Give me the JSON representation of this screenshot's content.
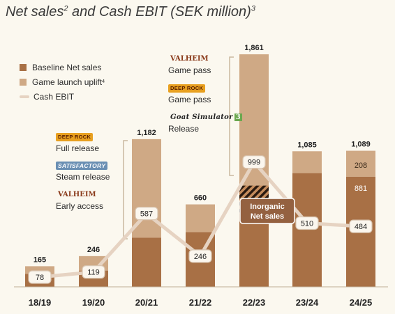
{
  "title": {
    "main": "Net sales",
    "sup1": "2",
    "mid": " and Cash EBIT (SEK million)",
    "sup2": "3"
  },
  "legend": {
    "baseline": "Baseline Net sales",
    "uplift": "Game launch uplift",
    "uplift_sup": "4",
    "ebit": "Cash EBIT"
  },
  "annotations": {
    "group_2021": [
      {
        "logo": "DEEP ROCK",
        "label": "Full release"
      },
      {
        "logo": "SATISFACTORY",
        "label": "Steam release"
      },
      {
        "logo": "VALHEIM",
        "label": "Early access"
      }
    ],
    "group_2223": [
      {
        "logo": "VALHEIM",
        "label": "Game pass"
      },
      {
        "logo": "DEEP ROCK",
        "label": "Game pass"
      },
      {
        "logo": "Goat Simulator",
        "logo_num": "3",
        "label": "Release"
      }
    ],
    "inorganic_label_line1": "Inorganic",
    "inorganic_label_line2": "Net sales"
  },
  "colors": {
    "baseline": "#a87045",
    "uplift": "#cfa985",
    "ebit_line": "#e6d3c2",
    "background": "#fbf8ef",
    "inorganic_box": "#946140"
  },
  "chart_data": {
    "type": "bar",
    "categories": [
      "18/19",
      "19/20",
      "20/21",
      "21/22",
      "22/23",
      "23/24",
      "24/25"
    ],
    "totals": [
      165,
      246,
      1182,
      660,
      1861,
      1085,
      1089
    ],
    "series": [
      {
        "name": "Baseline Net sales",
        "values": [
          null,
          null,
          null,
          null,
          null,
          null,
          881
        ],
        "shown_label": [
          "",
          "",
          "",
          "",
          "",
          "",
          "881"
        ]
      },
      {
        "name": "Game launch uplift",
        "values": [
          null,
          null,
          null,
          null,
          null,
          null,
          208
        ],
        "shown_label": [
          "",
          "",
          "",
          "",
          "",
          "",
          "208"
        ]
      },
      {
        "name": "Cash EBIT",
        "type": "line",
        "values": [
          78,
          119,
          587,
          246,
          999,
          510,
          484
        ]
      }
    ],
    "approx_baseline": [
      103,
      130,
      393,
      438,
      590,
      910,
      881
    ],
    "inorganic_segment_2223": {
      "from": 590,
      "to": 810
    },
    "ylim": [
      0,
      1861
    ],
    "xlabel": "",
    "ylabel": ""
  }
}
